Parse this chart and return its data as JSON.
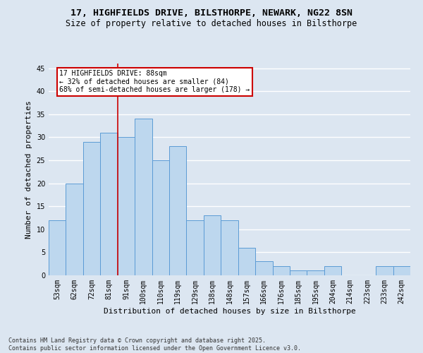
{
  "title_line1": "17, HIGHFIELDS DRIVE, BILSTHORPE, NEWARK, NG22 8SN",
  "title_line2": "Size of property relative to detached houses in Bilsthorpe",
  "categories": [
    "53sqm",
    "62sqm",
    "72sqm",
    "81sqm",
    "91sqm",
    "100sqm",
    "110sqm",
    "119sqm",
    "129sqm",
    "138sqm",
    "148sqm",
    "157sqm",
    "166sqm",
    "176sqm",
    "185sqm",
    "195sqm",
    "204sqm",
    "214sqm",
    "223sqm",
    "233sqm",
    "242sqm"
  ],
  "values": [
    12,
    20,
    29,
    31,
    30,
    34,
    25,
    28,
    12,
    13,
    12,
    6,
    3,
    2,
    1,
    1,
    2,
    0,
    0,
    2,
    2
  ],
  "bar_color": "#bdd7ee",
  "bar_edge_color": "#5b9bd5",
  "background_color": "#dce6f1",
  "grid_color": "#ffffff",
  "xlabel": "Distribution of detached houses by size in Bilsthorpe",
  "ylabel": "Number of detached properties",
  "ylim": [
    0,
    46
  ],
  "yticks": [
    0,
    5,
    10,
    15,
    20,
    25,
    30,
    35,
    40,
    45
  ],
  "redline_x": 3.5,
  "annotation_text": "17 HIGHFIELDS DRIVE: 88sqm\n← 32% of detached houses are smaller (84)\n68% of semi-detached houses are larger (178) →",
  "annotation_box_color": "#ffffff",
  "annotation_box_edge": "#cc0000",
  "redline_color": "#cc0000",
  "footer_line1": "Contains HM Land Registry data © Crown copyright and database right 2025.",
  "footer_line2": "Contains public sector information licensed under the Open Government Licence v3.0.",
  "title_fontsize": 9.5,
  "subtitle_fontsize": 8.5,
  "axis_label_fontsize": 8,
  "tick_fontsize": 7,
  "annotation_fontsize": 7,
  "footer_fontsize": 6
}
